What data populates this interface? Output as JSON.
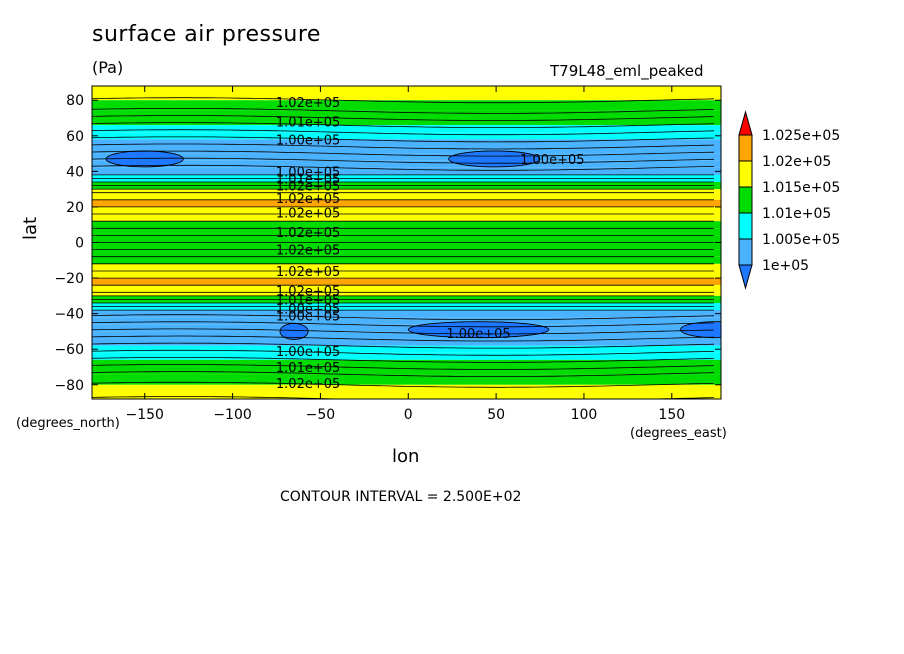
{
  "title": "surface air pressure",
  "units": "(Pa)",
  "run_label": "T79L48_eml_peaked",
  "x_label": "lon",
  "x_units": "(degrees_east)",
  "y_label": "lat",
  "y_units": "(degrees_north)",
  "contour_interval_text": "CONTOUR INTERVAL = 2.500E+02",
  "colors": {
    "below_1.000e5": "#1e78ff",
    "1.000e5_1.005e5": "#4ab2ff",
    "1.005e5_1.010e5": "#00ffff",
    "1.010e5_1.015e5": "#00dc00",
    "1.015e5_1.020e5": "#ffff00",
    "1.020e5_1.025e5": "#ffa500",
    "above_1.025e5": "#ff0000"
  },
  "chart_data": {
    "type": "heatmap",
    "subtype": "filled contour",
    "title": "surface air pressure",
    "units": "Pa",
    "xlabel": "lon",
    "ylabel": "lat",
    "xlim": [
      -180,
      178
    ],
    "ylim": [
      -88,
      88
    ],
    "x_ticks": [
      -150,
      -100,
      -50,
      0,
      50,
      100,
      150
    ],
    "y_ticks": [
      -80,
      -60,
      -40,
      -20,
      0,
      20,
      40,
      60,
      80
    ],
    "contour_interval": 250,
    "colorbar": {
      "labels": [
        "1e+05",
        "1.005e+05",
        "1.01e+05",
        "1.015e+05",
        "1.02e+05",
        "1.025e+05"
      ],
      "levels": [
        100000,
        100500,
        101000,
        101500,
        102000,
        102500
      ],
      "extend": "both"
    },
    "zonal_profile": {
      "lat": [
        88,
        80,
        74,
        70,
        66,
        62,
        58,
        54,
        50,
        46,
        42,
        38,
        36,
        34,
        32,
        30,
        28,
        24,
        20,
        16,
        12,
        8,
        4,
        0,
        -4,
        -8,
        -12,
        -16,
        -20,
        -24,
        -28,
        -30,
        -32,
        -34,
        -36,
        -38,
        -42,
        -46,
        -50,
        -54,
        -58,
        -62,
        -66,
        -70,
        -74,
        -80,
        -88
      ],
      "value": [
        101650,
        101550,
        101350,
        101150,
        100900,
        100650,
        100450,
        100250,
        100050,
        100150,
        100350,
        100600,
        100850,
        101100,
        101350,
        101600,
        101850,
        102100,
        102050,
        101800,
        101550,
        101300,
        101150,
        101100,
        101150,
        101300,
        101550,
        101800,
        102050,
        102100,
        101850,
        101600,
        101350,
        101100,
        100850,
        100600,
        100350,
        100150,
        100050,
        100250,
        100450,
        100650,
        100900,
        101150,
        101350,
        101550,
        101650
      ]
    },
    "contour_labels": [
      {
        "text": "1.02e+05",
        "lon": -57,
        "lat": 79
      },
      {
        "text": "1.01e+05",
        "lon": -57,
        "lat": 68
      },
      {
        "text": "1.00e+05",
        "lon": -57,
        "lat": 58
      },
      {
        "text": "1.00e+05",
        "lon": -57,
        "lat": 40
      },
      {
        "text": "1.01e+05",
        "lon": -57,
        "lat": 36
      },
      {
        "text": "1.02e+05",
        "lon": -57,
        "lat": 32
      },
      {
        "text": "1.02e+05",
        "lon": -57,
        "lat": 25
      },
      {
        "text": "1.02e+05",
        "lon": -57,
        "lat": 17
      },
      {
        "text": "1.02e+05",
        "lon": -57,
        "lat": 6
      },
      {
        "text": "1.02e+05",
        "lon": -57,
        "lat": -4
      },
      {
        "text": "1.02e+05",
        "lon": -57,
        "lat": -16
      },
      {
        "text": "1.02e+05",
        "lon": -57,
        "lat": -27
      },
      {
        "text": "1.01e+05",
        "lon": -57,
        "lat": -32
      },
      {
        "text": "1.00e+05",
        "lon": -57,
        "lat": -37
      },
      {
        "text": "1.00e+05",
        "lon": -57,
        "lat": -41
      },
      {
        "text": "1.00e+05",
        "lon": 82,
        "lat": 47
      },
      {
        "text": "1.00e+05",
        "lon": 40,
        "lat": -51
      },
      {
        "text": "1.00e+05",
        "lon": -57,
        "lat": -61
      },
      {
        "text": "1.01e+05",
        "lon": -57,
        "lat": -70
      },
      {
        "text": "1.02e+05",
        "lon": -57,
        "lat": -79
      }
    ],
    "low_cells": [
      {
        "lon_center": -150,
        "lat_center": 47,
        "lon_half_width": 22
      },
      {
        "lon_center": 49,
        "lat_center": 47,
        "lon_half_width": 26
      },
      {
        "lon_center": -65,
        "lat_center": -50,
        "lon_half_width": 8
      },
      {
        "lon_center": 40,
        "lat_center": -49,
        "lon_half_width": 40
      },
      {
        "lon_center": 175,
        "lat_center": -49,
        "lon_half_width": 20
      }
    ]
  }
}
